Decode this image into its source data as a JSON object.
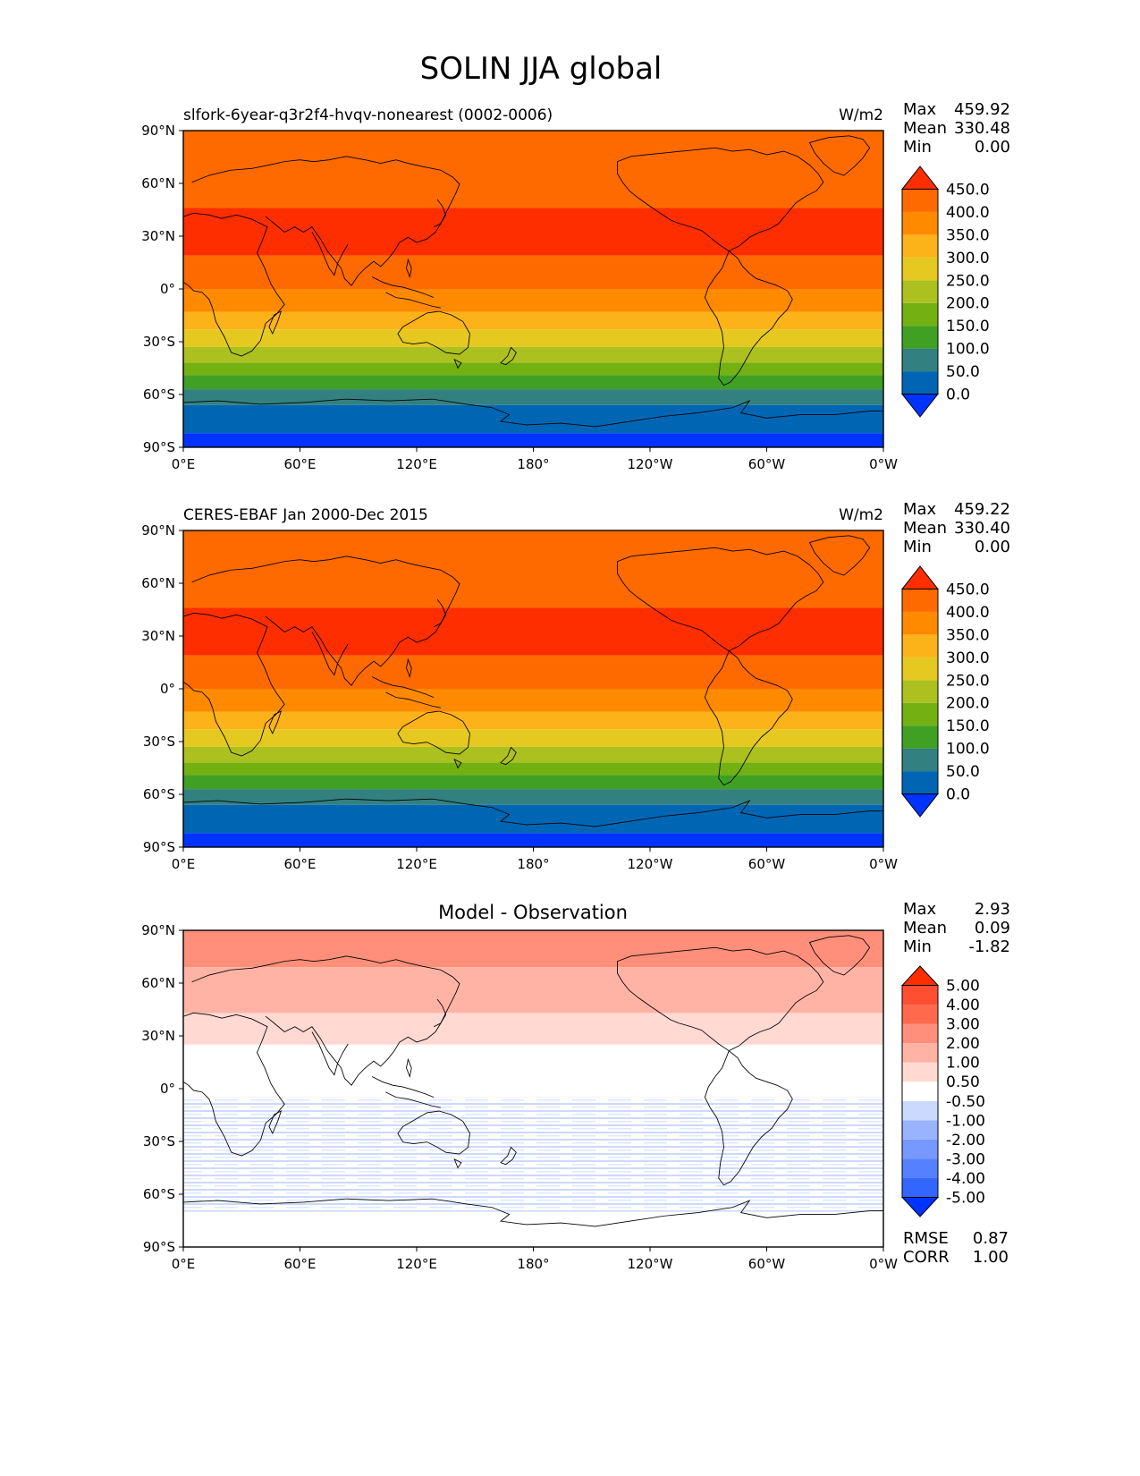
{
  "figure_title": "SOLIN JJA global",
  "colors": {
    "land_outline": "#000000",
    "ocean_bg": "#ffffff"
  },
  "chart_data": [
    {
      "type": "heatmap",
      "title": "slfork-6year-q3r2f4-hvqv-nonearest (0002-0006)",
      "units": "W/m2",
      "stats": {
        "max_label": "Max",
        "max": "459.92",
        "mean_label": "Mean",
        "mean": "330.48",
        "min_label": "Min",
        "min": "0.00"
      },
      "x_ticks": [
        "0°E",
        "60°E",
        "120°E",
        "180°",
        "120°W",
        "60°W",
        "0°W"
      ],
      "y_ticks": [
        "90°N",
        "60°N",
        "30°N",
        "0°",
        "30°S",
        "60°S",
        "90°S"
      ],
      "ylim": [
        -90,
        90
      ],
      "colorbar": {
        "levels": [
          0,
          50,
          100,
          150,
          200,
          250,
          300,
          350,
          400,
          450
        ],
        "labels": [
          "0.0",
          "50.0",
          "100.0",
          "150.0",
          "200.0",
          "250.0",
          "300.0",
          "350.0",
          "400.0",
          "450.0"
        ],
        "colors": [
          "#0033ff",
          "#0066b3",
          "#338080",
          "#40a023",
          "#73b012",
          "#acc020",
          "#e5c820",
          "#fcb219",
          "#ff8a00",
          "#ff6a00",
          "#ff2e00"
        ]
      },
      "bands": [
        {
          "lat_from": 90,
          "lat_to": 46,
          "value": 425
        },
        {
          "lat_from": 46,
          "lat_to": 19,
          "value": 455
        },
        {
          "lat_from": 19,
          "lat_to": 0,
          "value": 425
        },
        {
          "lat_from": 0,
          "lat_to": -13,
          "value": 375
        },
        {
          "lat_from": -13,
          "lat_to": -23,
          "value": 325
        },
        {
          "lat_from": -23,
          "lat_to": -33,
          "value": 275
        },
        {
          "lat_from": -33,
          "lat_to": -42,
          "value": 225
        },
        {
          "lat_from": -42,
          "lat_to": -49,
          "value": 175
        },
        {
          "lat_from": -49,
          "lat_to": -57,
          "value": 125
        },
        {
          "lat_from": -57,
          "lat_to": -66,
          "value": 75
        },
        {
          "lat_from": -66,
          "lat_to": -82,
          "value": 25
        },
        {
          "lat_from": -82,
          "lat_to": -90,
          "value": -5
        }
      ]
    },
    {
      "type": "heatmap",
      "title": "CERES-EBAF Jan 2000-Dec 2015",
      "units": "W/m2",
      "stats": {
        "max_label": "Max",
        "max": "459.22",
        "mean_label": "Mean",
        "mean": "330.40",
        "min_label": "Min",
        "min": "0.00"
      },
      "x_ticks": [
        "0°E",
        "60°E",
        "120°E",
        "180°",
        "120°W",
        "60°W",
        "0°W"
      ],
      "y_ticks": [
        "90°N",
        "60°N",
        "30°N",
        "0°",
        "30°S",
        "60°S",
        "90°S"
      ],
      "ylim": [
        -90,
        90
      ],
      "colorbar": {
        "levels": [
          0,
          50,
          100,
          150,
          200,
          250,
          300,
          350,
          400,
          450
        ],
        "labels": [
          "0.0",
          "50.0",
          "100.0",
          "150.0",
          "200.0",
          "250.0",
          "300.0",
          "350.0",
          "400.0",
          "450.0"
        ],
        "colors": [
          "#0033ff",
          "#0066b3",
          "#338080",
          "#40a023",
          "#73b012",
          "#acc020",
          "#e5c820",
          "#fcb219",
          "#ff8a00",
          "#ff6a00",
          "#ff2e00"
        ]
      },
      "bands": [
        {
          "lat_from": 90,
          "lat_to": 46,
          "value": 425
        },
        {
          "lat_from": 46,
          "lat_to": 19,
          "value": 455
        },
        {
          "lat_from": 19,
          "lat_to": 0,
          "value": 425
        },
        {
          "lat_from": 0,
          "lat_to": -13,
          "value": 375
        },
        {
          "lat_from": -13,
          "lat_to": -23,
          "value": 325
        },
        {
          "lat_from": -23,
          "lat_to": -33,
          "value": 275
        },
        {
          "lat_from": -33,
          "lat_to": -42,
          "value": 225
        },
        {
          "lat_from": -42,
          "lat_to": -49,
          "value": 175
        },
        {
          "lat_from": -49,
          "lat_to": -57,
          "value": 125
        },
        {
          "lat_from": -57,
          "lat_to": -66,
          "value": 75
        },
        {
          "lat_from": -66,
          "lat_to": -82,
          "value": 25
        },
        {
          "lat_from": -82,
          "lat_to": -90,
          "value": -5
        }
      ]
    },
    {
      "type": "heatmap",
      "title": "Model - Observation",
      "units": "",
      "stats": {
        "max_label": "Max",
        "max": "2.93",
        "mean_label": "Mean",
        "mean": "0.09",
        "min_label": "Min",
        "min": "-1.82"
      },
      "extra_stats": {
        "rmse_label": "RMSE",
        "rmse": "0.87",
        "corr_label": "CORR",
        "corr": "1.00"
      },
      "x_ticks": [
        "0°E",
        "60°E",
        "120°E",
        "180°",
        "120°W",
        "60°W",
        "0°W"
      ],
      "y_ticks": [
        "90°N",
        "60°N",
        "30°N",
        "0°",
        "30°S",
        "60°S",
        "90°S"
      ],
      "ylim": [
        -90,
        90
      ],
      "colorbar": {
        "levels": [
          -5,
          -4,
          -3,
          -2,
          -1,
          -0.5,
          0.5,
          1,
          2,
          3,
          4,
          5
        ],
        "labels": [
          "-5.00",
          "-4.00",
          "-3.00",
          "-2.00",
          "-1.00",
          "-0.50",
          "0.50",
          "1.00",
          "2.00",
          "3.00",
          "4.00",
          "5.00"
        ],
        "colors": [
          "#0033ff",
          "#3366ff",
          "#5580ff",
          "#7799ff",
          "#99b3ff",
          "#ccd9ff",
          "#ffffff",
          "#ffd9d2",
          "#ffb3a5",
          "#ff8f7a",
          "#ff6a4d",
          "#ff4f33",
          "#ff2e00"
        ]
      },
      "bands": [
        {
          "lat_from": 90,
          "lat_to": 69,
          "value": 2.5
        },
        {
          "lat_from": 69,
          "lat_to": 43,
          "value": 1.5
        },
        {
          "lat_from": 43,
          "lat_to": 25,
          "value": 0.75
        },
        {
          "lat_from": 25,
          "lat_to": -5,
          "value": 0
        },
        {
          "lat_from": -5,
          "lat_to": -70,
          "value": -0.75,
          "pattern": "stripes"
        },
        {
          "lat_from": -70,
          "lat_to": -90,
          "value": 0
        }
      ]
    }
  ]
}
